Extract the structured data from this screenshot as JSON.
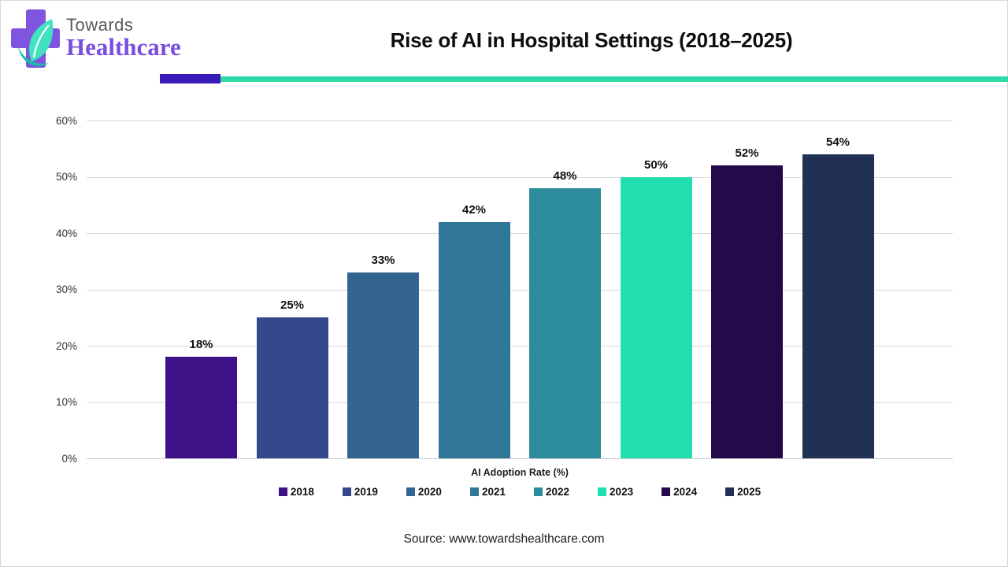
{
  "header": {
    "logo": {
      "line1": "Towards",
      "line2": "Healthcare"
    },
    "title": "Rise of AI in Hospital Settings (2018–2025)"
  },
  "chart_data": {
    "type": "bar",
    "title": "Rise of AI in Hospital Settings (2018–2025)",
    "categories": [
      "2018",
      "2019",
      "2020",
      "2021",
      "2022",
      "2023",
      "2024",
      "2025"
    ],
    "values": [
      18,
      25,
      33,
      42,
      48,
      50,
      52,
      54
    ],
    "value_labels": [
      "18%",
      "25%",
      "33%",
      "42%",
      "48%",
      "50%",
      "52%",
      "54%"
    ],
    "bar_colors": [
      "#3D1287",
      "#34498C",
      "#336590",
      "#2F7697",
      "#2D8C9B",
      "#22DFB0",
      "#230A4A",
      "#213055"
    ],
    "xlabel": "AI Adoption Rate (%)",
    "ylabel": "",
    "ylim": [
      0,
      60
    ],
    "ytick_step": 10,
    "ytick_labels": [
      "0%",
      "10%",
      "20%",
      "30%",
      "40%",
      "50%",
      "60%"
    ],
    "grid": true,
    "legend_position": "bottom"
  },
  "footer": {
    "source": "Source: www.towardshealthcare.com"
  },
  "colors": {
    "accent_purple": "#3A1BB8",
    "accent_teal": "#2FD9A8",
    "gridline": "#DADADA",
    "logo_purple": "#7F55E0",
    "logo_leaf_mint": "#3FE3BF",
    "logo_leaf_teal": "#18BFA6",
    "logo_healthcare_text": "#7B4EE2",
    "logo_towards_text": "#5A5A5A"
  }
}
